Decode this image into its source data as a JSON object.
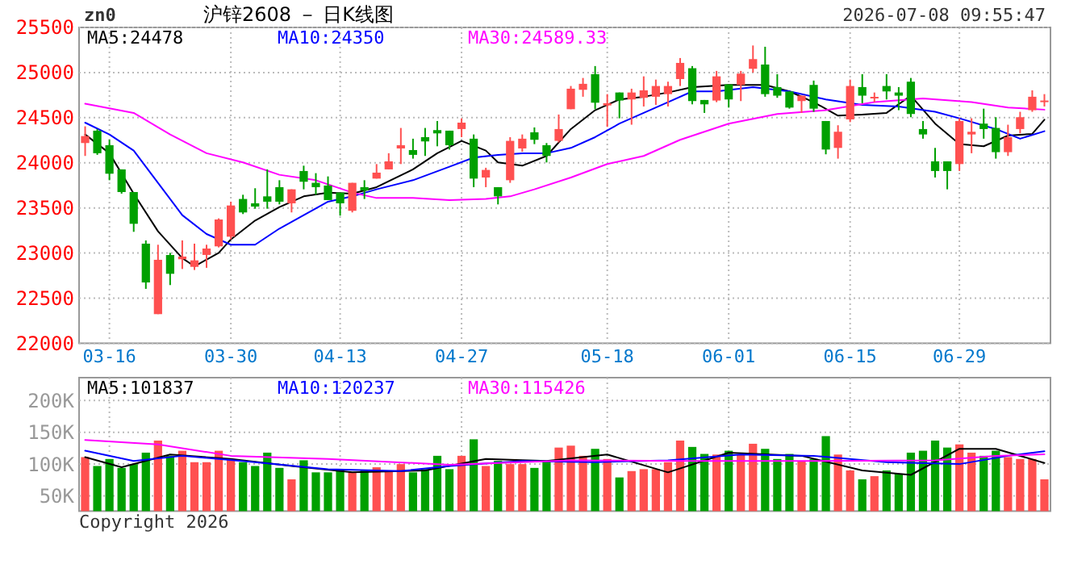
{
  "chart_data": [
    {
      "type": "candlestick",
      "title": "沪锌2608 － 日K线图",
      "annotations": [
        "zn0",
        "2026-07-08 09:55:47"
      ],
      "categories": [
        null,
        null,
        "03-16",
        null,
        null,
        null,
        null,
        null,
        null,
        null,
        null,
        null,
        "03-30",
        null,
        null,
        null,
        null,
        null,
        null,
        null,
        null,
        "04-13",
        null,
        null,
        null,
        null,
        null,
        null,
        null,
        null,
        null,
        "04-27",
        null,
        null,
        null,
        null,
        null,
        null,
        null,
        null,
        null,
        null,
        null,
        "05-18",
        null,
        null,
        null,
        null,
        null,
        null,
        null,
        null,
        null,
        "06-01",
        null,
        null,
        null,
        null,
        null,
        null,
        null,
        null,
        null,
        "06-15",
        null,
        null,
        null,
        null,
        null,
        null,
        null,
        null,
        "06-29",
        null,
        null,
        null,
        null,
        null,
        null,
        null
      ],
      "ohlc": [
        [
          24219,
          24404,
          24076,
          24296
        ],
        [
          24356,
          24374,
          24088,
          24106
        ],
        [
          24195,
          24255,
          23807,
          23879
        ],
        [
          23927,
          23927,
          23658,
          23676
        ],
        [
          23676,
          23676,
          23235,
          23324
        ],
        [
          23104,
          23140,
          22603,
          22674
        ],
        [
          22323,
          23092,
          22323,
          22925
        ],
        [
          22978,
          23002,
          22645,
          22770
        ],
        [
          22931,
          23140,
          22823,
          22961
        ],
        [
          22847,
          23104,
          22812,
          22919
        ],
        [
          22979,
          23092,
          22836,
          23050
        ],
        [
          23074,
          23384,
          23062,
          23372
        ],
        [
          23181,
          23569,
          23151,
          23527
        ],
        [
          23599,
          23646,
          23432,
          23450
        ],
        [
          23551,
          23718,
          23491,
          23515
        ],
        [
          23628,
          23927,
          23491,
          23569
        ],
        [
          23730,
          23807,
          23539,
          23569
        ],
        [
          23551,
          23706,
          23450,
          23706
        ],
        [
          23909,
          23968,
          23706,
          23790
        ],
        [
          23778,
          23885,
          23646,
          23730
        ],
        [
          23748,
          23849,
          23587,
          23587
        ],
        [
          23670,
          23670,
          23414,
          23551
        ],
        [
          23468,
          23778,
          23450,
          23778
        ],
        [
          23730,
          23807,
          23599,
          23694
        ],
        [
          23825,
          23986,
          23825,
          23891
        ],
        [
          23927,
          24106,
          23927,
          24016
        ],
        [
          24159,
          24386,
          23986,
          24195
        ],
        [
          24141,
          24267,
          24046,
          24088
        ],
        [
          24284,
          24386,
          24076,
          24237
        ],
        [
          24362,
          24463,
          24183,
          24326
        ],
        [
          24356,
          24356,
          24147,
          24195
        ],
        [
          24374,
          24493,
          24284,
          24445
        ],
        [
          24267,
          24314,
          23730,
          23825
        ],
        [
          23837,
          23945,
          23730,
          23921
        ],
        [
          23730,
          23730,
          23539,
          23628
        ],
        [
          23807,
          24284,
          23778,
          24243
        ],
        [
          24159,
          24314,
          24123,
          24267
        ],
        [
          24338,
          24392,
          24207,
          24255
        ],
        [
          24195,
          24219,
          24004,
          24076
        ],
        [
          24243,
          24535,
          24225,
          24374
        ],
        [
          24594,
          24851,
          24594,
          24821
        ],
        [
          24809,
          24940,
          24732,
          24875
        ],
        [
          24982,
          25072,
          24594,
          24666
        ],
        [
          24636,
          24761,
          24398,
          24660
        ],
        [
          24779,
          24779,
          24493,
          24690
        ],
        [
          24702,
          24821,
          24422,
          24779
        ],
        [
          24720,
          24958,
          24624,
          24803
        ],
        [
          24732,
          24922,
          24642,
          24851
        ],
        [
          24761,
          24899,
          24624,
          24851
        ],
        [
          24928,
          25161,
          24851,
          25107
        ],
        [
          25048,
          25072,
          24648,
          24684
        ],
        [
          24696,
          24696,
          24553,
          24648
        ],
        [
          24690,
          25018,
          24672,
          24958
        ],
        [
          24869,
          24869,
          24612,
          24702
        ],
        [
          24863,
          25018,
          24684,
          24988
        ],
        [
          25042,
          25300,
          25000,
          25149
        ],
        [
          25089,
          25286,
          24732,
          24761
        ],
        [
          24839,
          24982,
          24720,
          24744
        ],
        [
          24791,
          24791,
          24600,
          24612
        ],
        [
          24684,
          24744,
          24553,
          24744
        ],
        [
          24863,
          24911,
          24565,
          24600
        ],
        [
          24463,
          24463,
          24094,
          24147
        ],
        [
          24165,
          24416,
          24046,
          24344
        ],
        [
          24481,
          24922,
          24451,
          24851
        ],
        [
          24839,
          24982,
          24660,
          24744
        ],
        [
          24725,
          24779,
          24672,
          24731
        ],
        [
          24851,
          24982,
          24702,
          24791
        ],
        [
          24779,
          24839,
          24583,
          24744
        ],
        [
          24899,
          24940,
          24505,
          24541
        ],
        [
          24374,
          24463,
          24267,
          24314
        ],
        [
          24016,
          24165,
          23837,
          23909
        ],
        [
          24016,
          24016,
          23706,
          23909
        ],
        [
          23986,
          24493,
          23909,
          24463
        ],
        [
          24314,
          24493,
          24106,
          24344
        ],
        [
          24434,
          24600,
          24267,
          24374
        ],
        [
          24386,
          24505,
          24046,
          24118
        ],
        [
          24118,
          24422,
          24076,
          24284
        ],
        [
          24374,
          24565,
          24326,
          24505
        ],
        [
          24583,
          24803,
          24565,
          24732
        ],
        [
          24686,
          24761,
          24624,
          24690
        ]
      ],
      "colors": [
        "#ff5050",
        "#00a000",
        "#00a000",
        "#00a000",
        "#00a000",
        "#00a000",
        "#ff5050",
        "#00a000",
        "#ff5050",
        "#ff5050",
        "#ff5050",
        "#ff5050",
        "#ff5050",
        "#00a000",
        "#00a000",
        "#00a000",
        "#00a000",
        "#ff5050",
        "#00a000",
        "#00a000",
        "#00a000",
        "#00a000",
        "#ff5050",
        "#00a000",
        "#ff5050",
        "#ff5050",
        "#ff5050",
        "#00a000",
        "#00a000",
        "#00a000",
        "#00a000",
        "#ff5050",
        "#00a000",
        "#ff5050",
        "#00a000",
        "#ff5050",
        "#ff5050",
        "#00a000",
        "#00a000",
        "#ff5050",
        "#ff5050",
        "#ff5050",
        "#00a000",
        "#ff5050",
        "#00a000",
        "#ff5050",
        "#ff5050",
        "#ff5050",
        "#ff5050",
        "#ff5050",
        "#00a000",
        "#00a000",
        "#ff5050",
        "#00a000",
        "#ff5050",
        "#ff5050",
        "#00a000",
        "#00a000",
        "#00a000",
        "#ff5050",
        "#00a000",
        "#00a000",
        "#ff5050",
        "#ff5050",
        "#00a000",
        "#ff5050",
        "#00a000",
        "#00a000",
        "#00a000",
        "#00a000",
        "#00a000",
        "#00a000",
        "#ff5050",
        "#ff5050",
        "#00a000",
        "#00a000",
        "#ff5050",
        "#ff5050",
        "#ff5050",
        "#ff5050"
      ],
      "series": [
        {
          "name": "MA5:24478",
          "type": "line",
          "color": "#000000",
          "values": [
            24314,
            null,
            24106,
            null,
            23658,
            null,
            23241,
            null,
            22943,
            22853,
            null,
            23002,
            23151,
            null,
            23360,
            null,
            23509,
            null,
            23628,
            null,
            23670,
            null,
            23658,
            null,
            23730,
            null,
            null,
            23927,
            null,
            24106,
            null,
            24243,
            null,
            24135,
            24004,
            null,
            23968,
            null,
            24076,
            null,
            24374,
            null,
            24583,
            null,
            24702,
            null,
            24732,
            null,
            24779,
            null,
            24839,
            null,
            null,
            24863,
            null,
            null,
            24863,
            null,
            24791,
            null,
            24672,
            null,
            24523,
            null,
            24535,
            null,
            24553,
            null,
            24744,
            null,
            24434,
            null,
            24207,
            null,
            24183,
            null,
            24302,
            null,
            24320,
            24478
          ]
        },
        {
          "name": "MA10:24350",
          "type": "line",
          "color": "#0000ff",
          "values": [
            24445,
            null,
            24314,
            null,
            24135,
            null,
            23778,
            null,
            23420,
            null,
            23211,
            null,
            23092,
            null,
            23092,
            null,
            23271,
            null,
            23420,
            null,
            23569,
            null,
            23628,
            null,
            23706,
            null,
            null,
            23807,
            null,
            null,
            23956,
            null,
            24058,
            null,
            24088,
            null,
            24106,
            null,
            24106,
            null,
            24165,
            null,
            24284,
            null,
            24434,
            null,
            24553,
            null,
            24672,
            null,
            24791,
            null,
            24791,
            null,
            null,
            24839,
            null,
            null,
            24791,
            null,
            null,
            24702,
            null,
            null,
            24642,
            null,
            null,
            24624,
            null,
            null,
            24565,
            null,
            24493,
            null,
            null,
            24374,
            null,
            24267,
            null,
            24350
          ]
        },
        {
          "name": "MA30:24589.33",
          "type": "line",
          "color": "#ff00ff",
          "values": [
            24654,
            null,
            null,
            null,
            24553,
            null,
            null,
            24314,
            null,
            null,
            24106,
            null,
            null,
            24004,
            null,
            null,
            23867,
            null,
            null,
            23807,
            null,
            null,
            23670,
            null,
            23610,
            null,
            null,
            23610,
            null,
            null,
            23587,
            null,
            null,
            23599,
            null,
            23628,
            null,
            23706,
            null,
            null,
            23837,
            null,
            null,
            23986,
            null,
            null,
            24076,
            null,
            null,
            24255,
            null,
            24344,
            null,
            24434,
            null,
            null,
            null,
            24541,
            null,
            null,
            null,
            24583,
            null,
            null,
            null,
            24672,
            null,
            null,
            null,
            24714,
            null,
            null,
            null,
            24672,
            null,
            null,
            24612,
            null,
            null,
            24589
          ]
        }
      ],
      "ylim": [
        22000,
        25500
      ],
      "yticks": [
        22000,
        22500,
        23000,
        23500,
        24000,
        24500,
        25000,
        25500
      ],
      "grid": true,
      "legend": "top left"
    },
    {
      "type": "bar",
      "annotations": [
        "Copyright 2026"
      ],
      "categories": [
        null,
        null,
        null,
        null,
        null,
        null,
        null,
        null,
        null,
        null,
        null,
        null,
        null,
        null,
        null,
        null,
        null,
        null,
        null,
        null,
        null,
        null,
        null,
        null,
        null,
        null,
        null,
        null,
        null,
        null,
        null,
        null,
        null,
        null,
        null,
        null,
        null,
        null,
        null,
        null,
        null,
        null,
        null,
        null,
        null,
        null,
        null,
        null,
        null,
        null,
        null,
        null,
        null,
        null,
        null,
        null,
        null,
        null,
        null,
        null,
        null,
        null,
        null,
        null,
        null,
        null,
        null,
        null,
        null,
        null,
        null,
        null,
        null,
        null,
        null,
        null,
        null,
        null,
        null,
        null
      ],
      "values": [
        111000,
        97000,
        108000,
        94000,
        100000,
        118000,
        137000,
        113000,
        121000,
        103000,
        103000,
        121000,
        108000,
        103000,
        97000,
        118000,
        94000,
        76000,
        106000,
        87000,
        87000,
        90000,
        87000,
        90000,
        95000,
        90000,
        100000,
        87000,
        92000,
        113000,
        92000,
        113000,
        139000,
        97000,
        105000,
        100000,
        100000,
        94000,
        103000,
        126000,
        129000,
        113000,
        124000,
        108000,
        79000,
        89000,
        92000,
        92000,
        103000,
        137000,
        127000,
        116000,
        115000,
        121000,
        115000,
        132000,
        124000,
        108000,
        116000,
        105000,
        108000,
        144000,
        115000,
        90000,
        76000,
        81000,
        90000,
        85000,
        118000,
        121000,
        137000,
        126000,
        131000,
        118000,
        113000,
        121000,
        111000,
        108000,
        108000,
        76000
      ],
      "colors": [
        "#ff5050",
        "#00a000",
        "#00a000",
        "#00a000",
        "#00a000",
        "#00a000",
        "#ff5050",
        "#00a000",
        "#ff5050",
        "#ff5050",
        "#ff5050",
        "#ff5050",
        "#ff5050",
        "#00a000",
        "#00a000",
        "#00a000",
        "#00a000",
        "#ff5050",
        "#00a000",
        "#00a000",
        "#00a000",
        "#00a000",
        "#ff5050",
        "#00a000",
        "#ff5050",
        "#ff5050",
        "#ff5050",
        "#00a000",
        "#00a000",
        "#00a000",
        "#00a000",
        "#ff5050",
        "#00a000",
        "#ff5050",
        "#00a000",
        "#ff5050",
        "#ff5050",
        "#00a000",
        "#00a000",
        "#ff5050",
        "#ff5050",
        "#ff5050",
        "#00a000",
        "#ff5050",
        "#00a000",
        "#ff5050",
        "#ff5050",
        "#ff5050",
        "#ff5050",
        "#ff5050",
        "#00a000",
        "#00a000",
        "#ff5050",
        "#00a000",
        "#ff5050",
        "#ff5050",
        "#00a000",
        "#00a000",
        "#00a000",
        "#ff5050",
        "#00a000",
        "#00a000",
        "#ff5050",
        "#ff5050",
        "#00a000",
        "#ff5050",
        "#00a000",
        "#00a000",
        "#00a000",
        "#00a000",
        "#00a000",
        "#00a000",
        "#ff5050",
        "#ff5050",
        "#00a000",
        "#00a000",
        "#ff5050",
        "#ff5050",
        "#ff5050",
        "#ff5050"
      ],
      "series": [
        {
          "name": "MA5:101837",
          "type": "line",
          "color": "#000000",
          "values": [
            111000,
            null,
            null,
            95000,
            null,
            null,
            null,
            115000,
            null,
            null,
            null,
            null,
            108000,
            null,
            null,
            null,
            null,
            97000,
            null,
            null,
            null,
            null,
            87000,
            null,
            null,
            null,
            null,
            null,
            90000,
            null,
            null,
            null,
            null,
            108000,
            null,
            null,
            null,
            null,
            105000,
            null,
            null,
            null,
            null,
            115000,
            null,
            null,
            null,
            null,
            87000,
            null,
            null,
            null,
            null,
            118000,
            null,
            null,
            null,
            null,
            null,
            113000,
            null,
            null,
            null,
            null,
            90000,
            null,
            null,
            null,
            83000,
            null,
            null,
            null,
            124000,
            null,
            null,
            124000,
            null,
            null,
            null,
            101837
          ]
        },
        {
          "name": "MA10:120237",
          "type": "line",
          "color": "#0000ff",
          "values": [
            121000,
            null,
            null,
            null,
            105000,
            null,
            null,
            null,
            113000,
            null,
            null,
            null,
            null,
            null,
            103000,
            null,
            null,
            null,
            null,
            null,
            92000,
            null,
            null,
            null,
            null,
            null,
            89000,
            null,
            null,
            null,
            97000,
            null,
            null,
            null,
            null,
            null,
            105000,
            null,
            null,
            null,
            null,
            null,
            103000,
            null,
            null,
            null,
            null,
            null,
            106000,
            null,
            null,
            null,
            null,
            null,
            115000,
            null,
            null,
            null,
            null,
            null,
            113000,
            null,
            null,
            null,
            null,
            null,
            103000,
            null,
            null,
            null,
            null,
            null,
            100000,
            null,
            null,
            null,
            113000,
            null,
            null,
            120237
          ]
        },
        {
          "name": "MA30:115426",
          "type": "line",
          "color": "#ff00ff",
          "values": [
            138000,
            null,
            null,
            null,
            null,
            null,
            131000,
            null,
            null,
            null,
            null,
            null,
            113000,
            null,
            null,
            null,
            null,
            null,
            null,
            null,
            108000,
            null,
            null,
            null,
            null,
            null,
            null,
            null,
            null,
            null,
            99000,
            null,
            null,
            null,
            null,
            null,
            null,
            null,
            null,
            null,
            106000,
            null,
            null,
            null,
            null,
            null,
            null,
            null,
            null,
            null,
            105000,
            null,
            null,
            null,
            null,
            null,
            null,
            null,
            null,
            null,
            105000,
            null,
            null,
            null,
            null,
            null,
            null,
            null,
            null,
            null,
            106000,
            null,
            null,
            null,
            null,
            113000,
            null,
            null,
            null,
            115426
          ]
        }
      ],
      "ylim": [
        26000,
        236000
      ],
      "yticks": [
        {
          "value": 50000,
          "label": "50K"
        },
        {
          "value": 100000,
          "label": "100K"
        },
        {
          "value": 150000,
          "label": "150K"
        },
        {
          "value": 200000,
          "label": "200K"
        }
      ],
      "tick_labels": "y",
      "grid": true,
      "legend": "top left"
    }
  ]
}
